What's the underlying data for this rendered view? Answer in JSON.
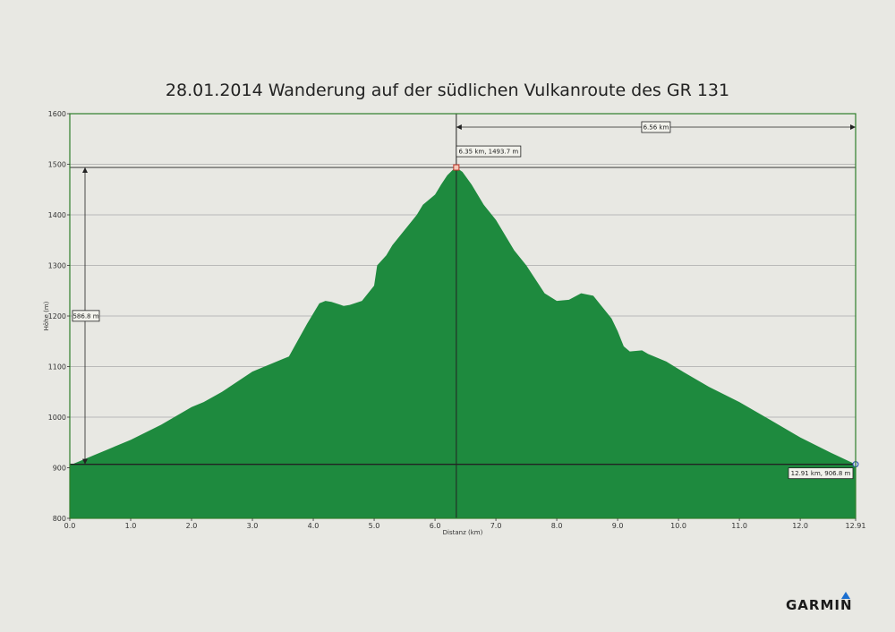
{
  "chart_data": {
    "type": "area",
    "title": "28.01.2014 Wanderung auf der südlichen Vulkanroute des GR 131",
    "xlabel": "Distanz  (km)",
    "ylabel": "Höhe (m)",
    "xlim": [
      0,
      12.91
    ],
    "ylim": [
      800,
      1600
    ],
    "x_ticks": [
      "0.0",
      "1.0",
      "2.0",
      "3.0",
      "4.0",
      "5.0",
      "6.0",
      "7.0",
      "8.0",
      "9.0",
      "10.0",
      "11.0",
      "12.0",
      "12.91"
    ],
    "x_tick_values": [
      0,
      1,
      2,
      3,
      4,
      5,
      6,
      7,
      8,
      9,
      10,
      11,
      12,
      12.91
    ],
    "y_ticks": [
      "800",
      "900",
      "1000",
      "1100",
      "1200",
      "1300",
      "1400",
      "1500",
      "1600"
    ],
    "y_tick_values": [
      800,
      900,
      1000,
      1100,
      1200,
      1300,
      1400,
      1500,
      1600
    ],
    "grid": true,
    "colors": {
      "fill": "#1e8a3e",
      "border": "#2f7f2a",
      "grid": "#aaaaaa"
    },
    "series": [
      {
        "x": [
          0,
          0.3,
          0.6,
          1.0,
          1.5,
          2.0,
          2.2,
          2.5,
          3.0,
          3.5,
          3.6,
          3.9,
          4.1,
          4.2,
          4.3,
          4.5,
          4.6,
          4.8,
          4.9,
          5.0,
          5.05,
          5.2,
          5.3,
          5.5,
          5.7,
          5.8,
          6.0,
          6.1,
          6.2,
          6.3,
          6.35,
          6.45,
          6.6,
          6.8,
          7.0,
          7.3,
          7.5,
          7.8,
          8.0,
          8.2,
          8.4,
          8.6,
          8.7,
          8.9,
          9.0,
          9.1,
          9.2,
          9.4,
          9.5,
          9.8,
          10.0,
          10.5,
          11.0,
          11.5,
          12.0,
          12.5,
          12.91
        ],
        "y": [
          905,
          920,
          935,
          955,
          985,
          1020,
          1030,
          1050,
          1090,
          1115,
          1120,
          1185,
          1225,
          1230,
          1228,
          1220,
          1222,
          1230,
          1245,
          1260,
          1300,
          1320,
          1340,
          1370,
          1400,
          1420,
          1440,
          1460,
          1478,
          1490,
          1493.7,
          1485,
          1460,
          1420,
          1390,
          1330,
          1300,
          1245,
          1230,
          1232,
          1245,
          1240,
          1225,
          1195,
          1170,
          1140,
          1130,
          1132,
          1125,
          1110,
          1095,
          1060,
          1030,
          995,
          960,
          930,
          906.8
        ]
      }
    ],
    "annotations": {
      "peak_label": "6.35 km, 1493.7 m",
      "peak_x": 6.35,
      "peak_y": 1493.7,
      "end_label": "12.91 km, 906.8 m",
      "end_x": 12.91,
      "end_y": 906.8,
      "height_diff_label": "586.8 m",
      "distance_label": "6.56 km"
    }
  },
  "branding": {
    "logo_text": "GARMIN",
    "logo_mark": "triangle-delta",
    "logo_mark_color": "#1b6fd0"
  }
}
